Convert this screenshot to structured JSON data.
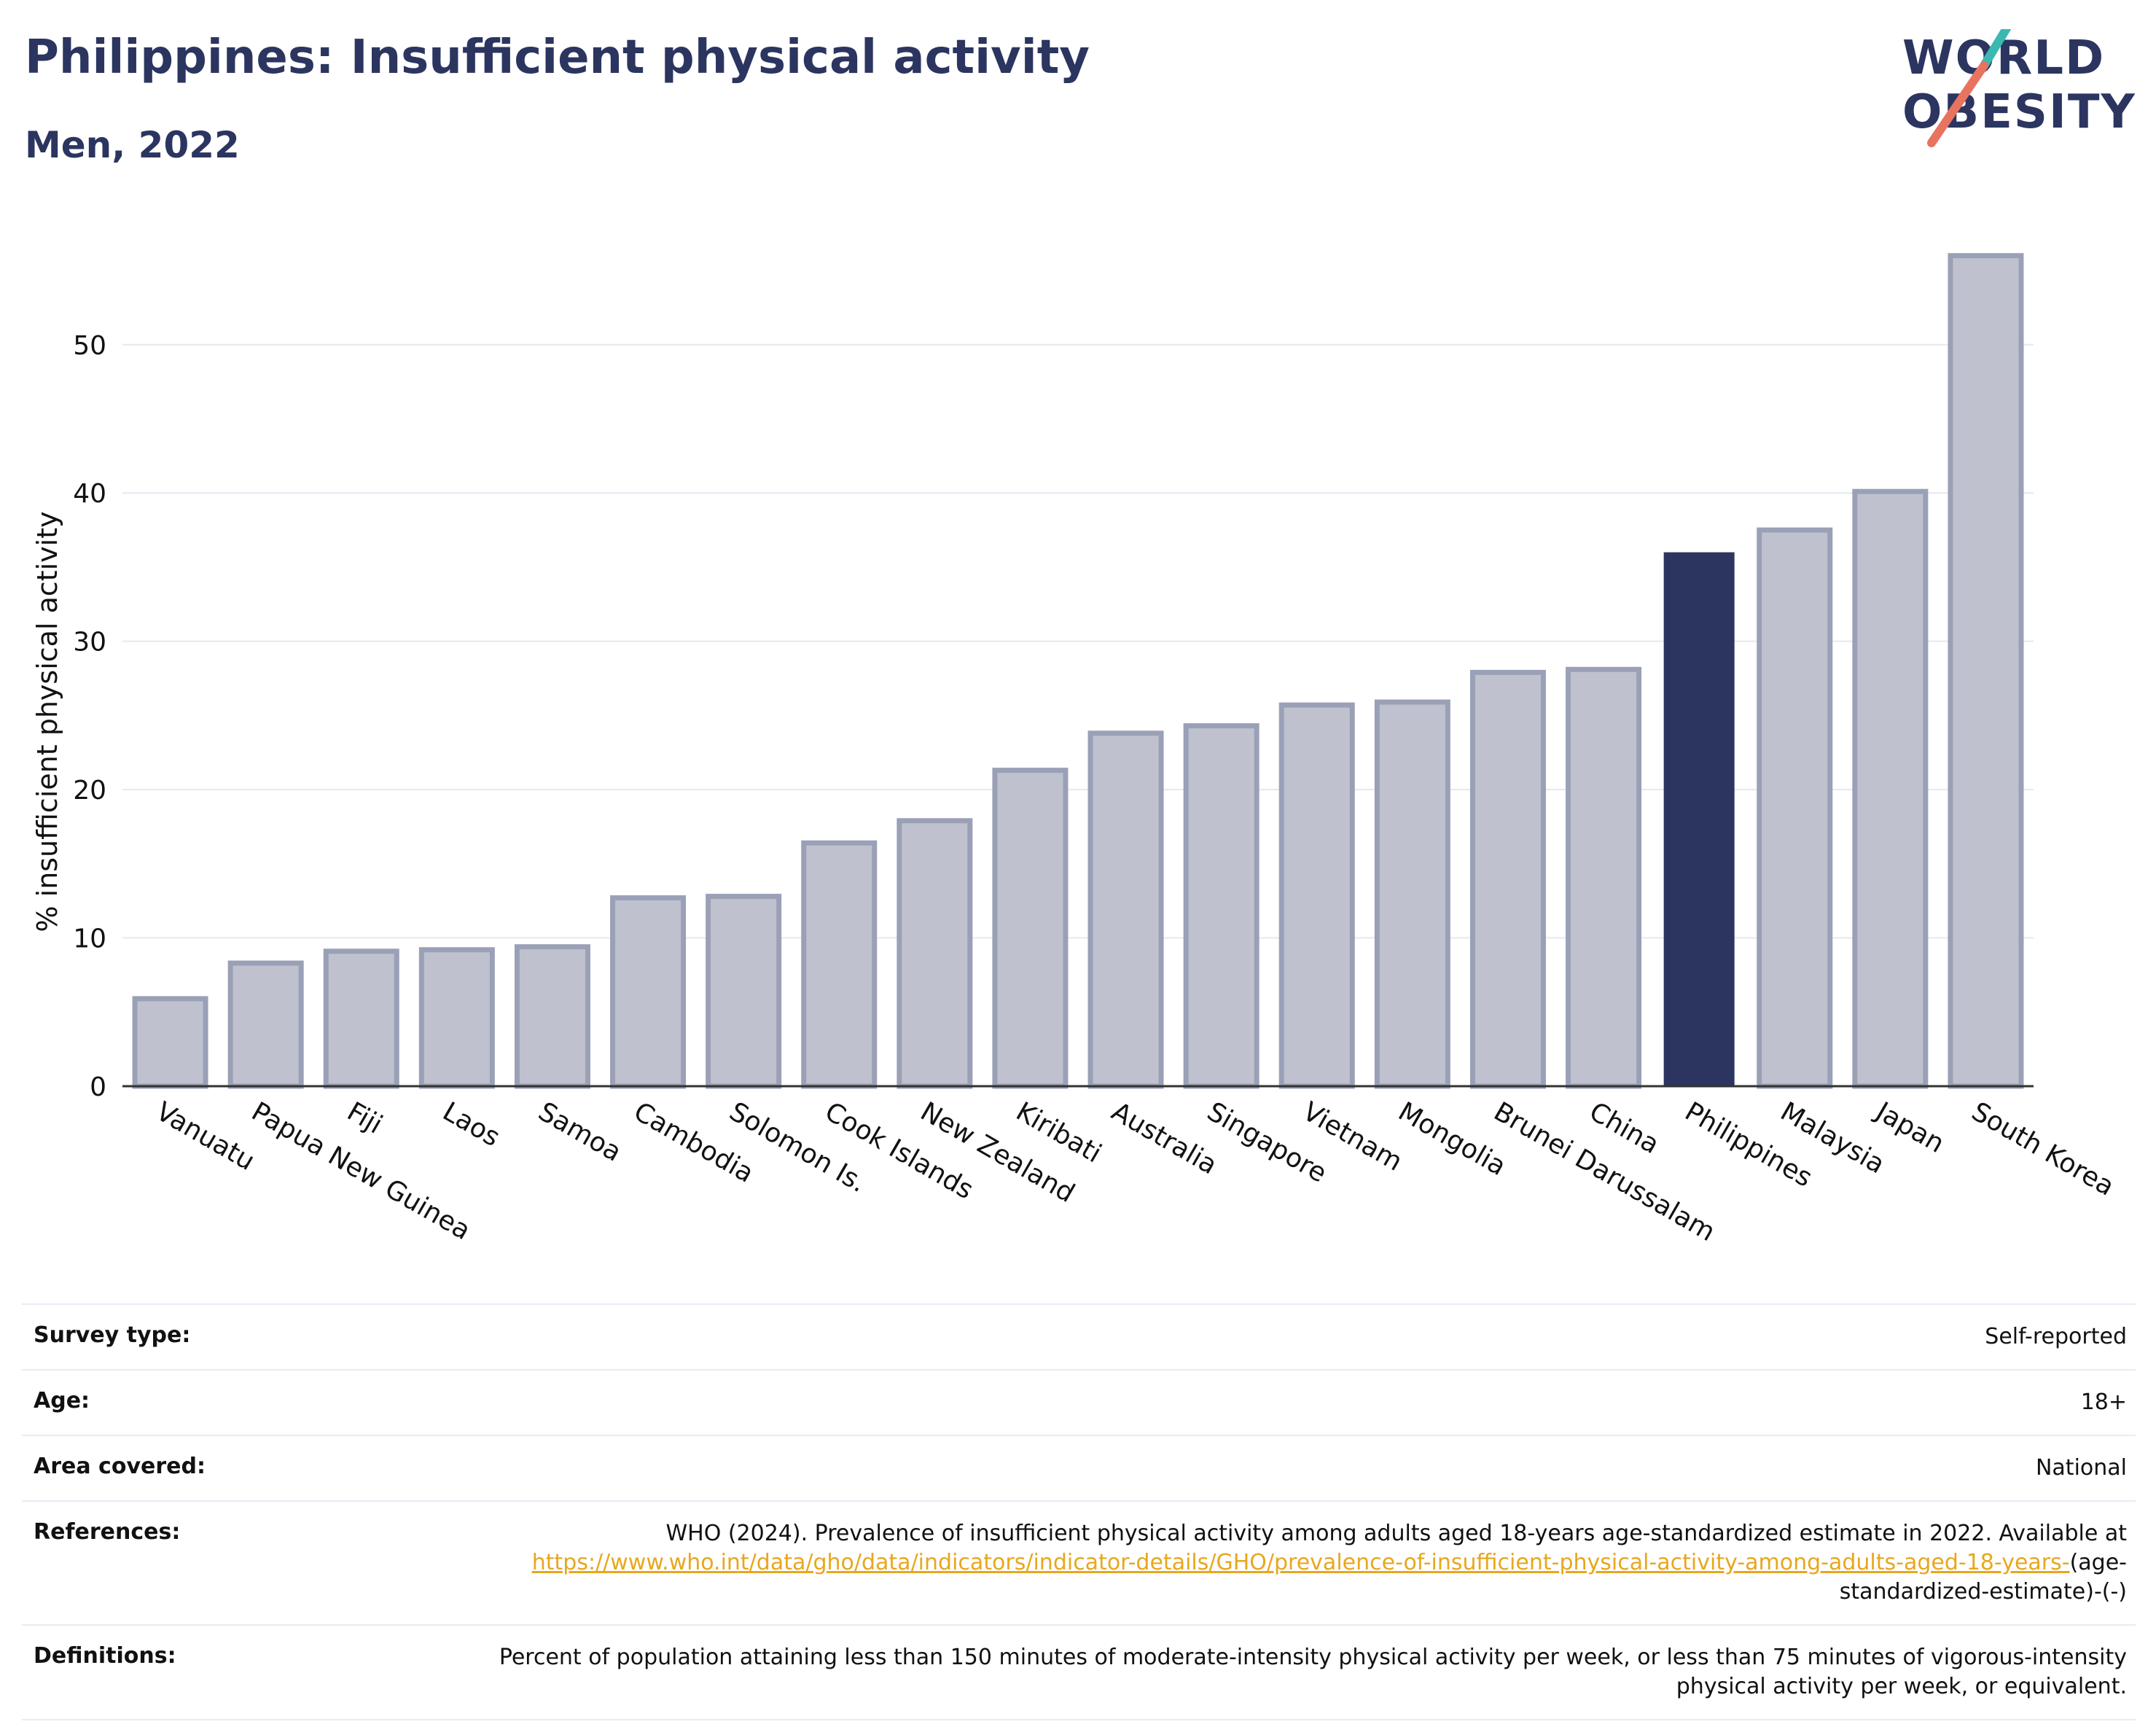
{
  "header": {
    "title": "Philippines: Insufficient physical activity",
    "subtitle": "Men, 2022",
    "logo_line1": "WORLD",
    "logo_line2": "OBESITY"
  },
  "colors": {
    "highlight": "#2b3560",
    "bar_fill": "#bfc2ce",
    "bar_outline": "#9aa0b6",
    "logo_teal": "#3bb8b0",
    "logo_coral": "#e8735f",
    "link": "#e8a71d"
  },
  "chart_data": {
    "type": "bar",
    "title": "Philippines: Insufficient physical activity",
    "subtitle": "Men, 2022",
    "ylabel": "% insufficient physical activity",
    "xlabel": "",
    "ylim": [
      0,
      58
    ],
    "yticks": [
      0,
      10,
      20,
      30,
      40,
      50
    ],
    "grid": true,
    "highlight": "Philippines",
    "categories": [
      "Vanuatu",
      "Papua New Guinea",
      "Fiji",
      "Laos",
      "Samoa",
      "Cambodia",
      "Solomon Is.",
      "Cook Islands",
      "New Zealand",
      "Kiribati",
      "Australia",
      "Singapore",
      "Vietnam",
      "Mongolia",
      "Brunei Darussalam",
      "China",
      "Philippines",
      "Malaysia",
      "Japan",
      "South Korea"
    ],
    "values": [
      5.9,
      8.3,
      9.1,
      9.2,
      9.4,
      12.7,
      12.8,
      16.4,
      17.9,
      21.3,
      23.8,
      24.3,
      25.7,
      25.9,
      27.9,
      28.1,
      36.0,
      37.5,
      40.1,
      56.0
    ]
  },
  "info": {
    "survey_type_label": "Survey type:",
    "survey_type_value": "Self-reported",
    "age_label": "Age:",
    "age_value": "18+",
    "area_label": "Area covered:",
    "area_value": "National",
    "references_label": "References:",
    "references_text": "WHO (2024). Prevalence of insufficient physical activity among adults aged 18-years age-standardized estimate in 2022. Available at",
    "references_link": "https://www.who.int/data/gho/data/indicators/indicator-details/GHO/prevalence-of-insufficient-physical-activity-among-adults-aged-18-years-",
    "references_suffix": "(age-standardized-estimate)-(-)",
    "definitions_label": "Definitions:",
    "definitions_text": "Percent of population attaining less than 150 minutes of moderate-intensity physical activity per week, or less than 75 minutes of vigorous-intensity physical activity per week, or equivalent."
  }
}
